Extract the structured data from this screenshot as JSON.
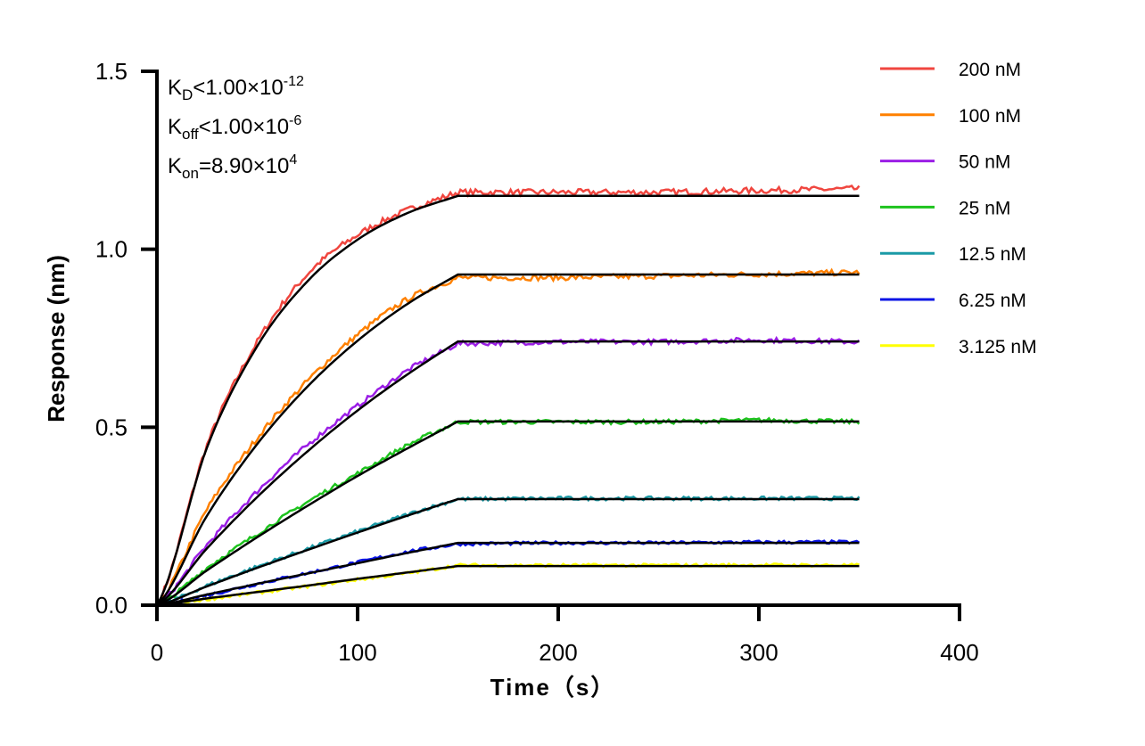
{
  "chart_data": {
    "type": "line",
    "xlabel": "Time（s）",
    "ylabel": "Response (nm)",
    "xlim": [
      0,
      400
    ],
    "ylim": [
      0,
      1.5
    ],
    "xticks": [
      "0",
      "100",
      "200",
      "300",
      "400"
    ],
    "yticks": [
      "0.0",
      "0.5",
      "1.0",
      "1.5"
    ],
    "grid": false,
    "legend_position": "top-right",
    "annotations": [
      {
        "main": "K",
        "sub": "D",
        "rest": "<1.00×10",
        "sup": "-12"
      },
      {
        "main": "K",
        "sub": "off",
        "rest": "<1.00×10",
        "sup": "-6"
      },
      {
        "main": "K",
        "sub": "on",
        "rest": "=8.90×10",
        "sup": "4"
      }
    ],
    "x": [
      0,
      25,
      50,
      75,
      100,
      125,
      150,
      200,
      250,
      300,
      350
    ],
    "fit_color": "#000000",
    "series": [
      {
        "name": "200 nM",
        "color": "#f0463f",
        "values": [
          0,
          0.45,
          0.74,
          0.93,
          1.04,
          1.11,
          1.16,
          1.16,
          1.16,
          1.165,
          1.17
        ],
        "fit": [
          0,
          0.444,
          0.728,
          0.91,
          1.027,
          1.102,
          1.15,
          1.15,
          1.15,
          1.15,
          1.15
        ]
      },
      {
        "name": "100 nM",
        "color": "#ff8000",
        "values": [
          0,
          0.27,
          0.47,
          0.63,
          0.76,
          0.86,
          0.92,
          0.92,
          0.925,
          0.93,
          0.935
        ],
        "fit": [
          0,
          0.252,
          0.453,
          0.614,
          0.743,
          0.847,
          0.929,
          0.929,
          0.929,
          0.929,
          0.929
        ]
      },
      {
        "name": "50 nM",
        "color": "#9b1ee6",
        "values": [
          0,
          0.17,
          0.32,
          0.45,
          0.56,
          0.66,
          0.735,
          0.74,
          0.74,
          0.745,
          0.74
        ],
        "fit": [
          0,
          0.16,
          0.304,
          0.432,
          0.547,
          0.649,
          0.741,
          0.741,
          0.741,
          0.741,
          0.741
        ]
      },
      {
        "name": "25 nM",
        "color": "#1ec31e",
        "values": [
          0,
          0.105,
          0.2,
          0.29,
          0.37,
          0.45,
          0.515,
          0.515,
          0.515,
          0.52,
          0.515
        ],
        "fit": [
          0,
          0.098,
          0.191,
          0.279,
          0.363,
          0.441,
          0.516,
          0.516,
          0.516,
          0.516,
          0.516
        ]
      },
      {
        "name": "12.5 nM",
        "color": "#1a9aa6",
        "values": [
          0,
          0.055,
          0.108,
          0.158,
          0.207,
          0.255,
          0.298,
          0.3,
          0.3,
          0.3,
          0.3
        ],
        "fit": [
          0,
          0.053,
          0.105,
          0.155,
          0.204,
          0.252,
          0.298,
          0.298,
          0.298,
          0.298,
          0.298
        ]
      },
      {
        "name": "6.25 nM",
        "color": "#0a14e6",
        "values": [
          0,
          0.028,
          0.06,
          0.09,
          0.12,
          0.15,
          0.172,
          0.175,
          0.175,
          0.177,
          0.177
        ],
        "fit": [
          0,
          0.03,
          0.06,
          0.089,
          0.118,
          0.147,
          0.175,
          0.175,
          0.175,
          0.175,
          0.175
        ]
      },
      {
        "name": "3.125 nM",
        "color": "#ffff00",
        "values": [
          0,
          0.017,
          0.035,
          0.053,
          0.072,
          0.09,
          0.112,
          0.112,
          0.112,
          0.113,
          0.112
        ],
        "fit": [
          0,
          0.019,
          0.037,
          0.055,
          0.074,
          0.092,
          0.11,
          0.11,
          0.11,
          0.11,
          0.11
        ]
      }
    ]
  }
}
